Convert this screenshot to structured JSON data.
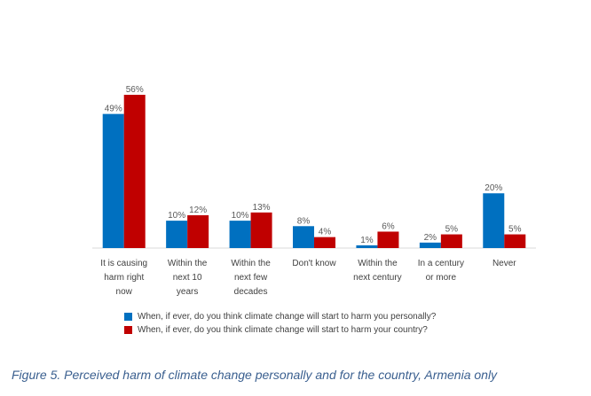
{
  "chart_data": {
    "type": "bar",
    "categories": [
      [
        "It is causing",
        "harm right",
        "now"
      ],
      [
        "Within the",
        "next 10",
        "years"
      ],
      [
        "Within the",
        "next few",
        "decades"
      ],
      [
        "Don't know"
      ],
      [
        "Within the",
        "next century"
      ],
      [
        "In a century",
        "or more"
      ],
      [
        "Never"
      ]
    ],
    "series": [
      {
        "name": "When, if ever, do you think climate change will start to harm you personally?",
        "color": "#0070c0",
        "values": [
          49,
          10,
          10,
          8,
          1,
          2,
          20
        ],
        "labels": [
          "49%",
          "10%",
          "10%",
          "8%",
          "1%",
          "2%",
          "20%"
        ]
      },
      {
        "name": "When, if ever, do you think climate change will start to harm your country?",
        "color": "#c00000",
        "values": [
          56,
          12,
          13,
          4,
          6,
          5,
          5
        ],
        "labels": [
          "56%",
          "12%",
          "13%",
          "4%",
          "6%",
          "5%",
          "5%"
        ]
      }
    ],
    "ylim": [
      0,
      60
    ],
    "grid": false,
    "legend": "bottom"
  },
  "caption": "Figure 5. Perceived harm of climate change personally and for the country, Armenia only"
}
